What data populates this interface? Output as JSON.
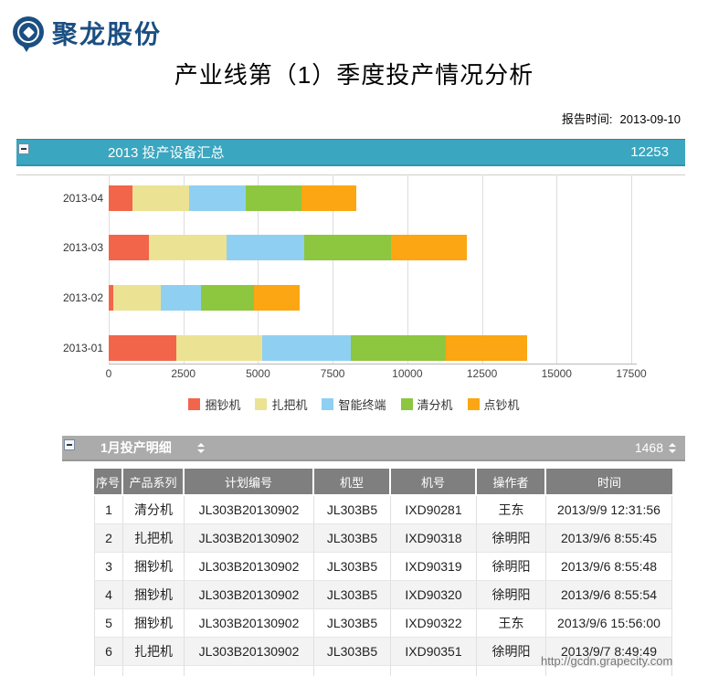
{
  "brand": {
    "name": "聚龙股份"
  },
  "header": {
    "title": "产业线第（1）季度投产情况分析",
    "report_time_label": "报告时间:",
    "report_time": "2013-09-10"
  },
  "summary_bar": {
    "title": "2013 投产设备汇总",
    "value": "12253",
    "color": "#3ba6bf"
  },
  "chart_data": {
    "type": "bar",
    "orientation": "horizontal",
    "stacked": true,
    "grid": true,
    "legend_position": "bottom",
    "categories": [
      "2013-04",
      "2013-03",
      "2013-02",
      "2013-01"
    ],
    "series": [
      {
        "name": "捆钞机",
        "color": "#f2654a",
        "values": [
          800,
          1350,
          150,
          2250
        ]
      },
      {
        "name": "扎把机",
        "color": "#ece293",
        "values": [
          1900,
          2600,
          1600,
          2900
        ]
      },
      {
        "name": "智能终端",
        "color": "#8fd0f2",
        "values": [
          1900,
          2600,
          1350,
          2950
        ]
      },
      {
        "name": "清分机",
        "color": "#8dc63f",
        "values": [
          1850,
          2900,
          1750,
          3200
        ]
      },
      {
        "name": "点钞机",
        "color": "#fba612",
        "values": [
          1850,
          2550,
          1550,
          2700
        ]
      }
    ],
    "xlim": [
      0,
      17500
    ],
    "xticks": [
      0,
      2500,
      5000,
      7500,
      10000,
      12500,
      15000,
      17500
    ],
    "totals": {
      "2013-04": 8300,
      "2013-03": 12000,
      "2013-02": 6400,
      "2013-01": 14000
    }
  },
  "detail_bar": {
    "title": "1月投产明细",
    "value": "1468"
  },
  "table": {
    "columns": [
      "序号",
      "产品系列",
      "计划编号",
      "机型",
      "机号",
      "操作者",
      "时间"
    ],
    "rows": [
      [
        "1",
        "清分机",
        "JL303B20130902",
        "JL303B5",
        "IXD90281",
        "王东",
        "2013/9/9 12:31:56"
      ],
      [
        "2",
        "扎把机",
        "JL303B20130902",
        "JL303B5",
        "IXD90318",
        "徐明阳",
        "2013/9/6 8:55:45"
      ],
      [
        "3",
        "捆钞机",
        "JL303B20130902",
        "JL303B5",
        "IXD90319",
        "徐明阳",
        "2013/9/6 8:55:48"
      ],
      [
        "4",
        "捆钞机",
        "JL303B20130902",
        "JL303B5",
        "IXD90320",
        "徐明阳",
        "2013/9/6 8:55:54"
      ],
      [
        "5",
        "捆钞机",
        "JL303B20130902",
        "JL303B5",
        "IXD90322",
        "王东",
        "2013/9/6 15:56:00"
      ],
      [
        "6",
        "扎把机",
        "JL303B20130902",
        "JL303B5",
        "IXD90351",
        "徐明阳",
        "2013/9/7 8:49:49"
      ]
    ]
  },
  "watermark": "http://gcdn.grapecity.com"
}
